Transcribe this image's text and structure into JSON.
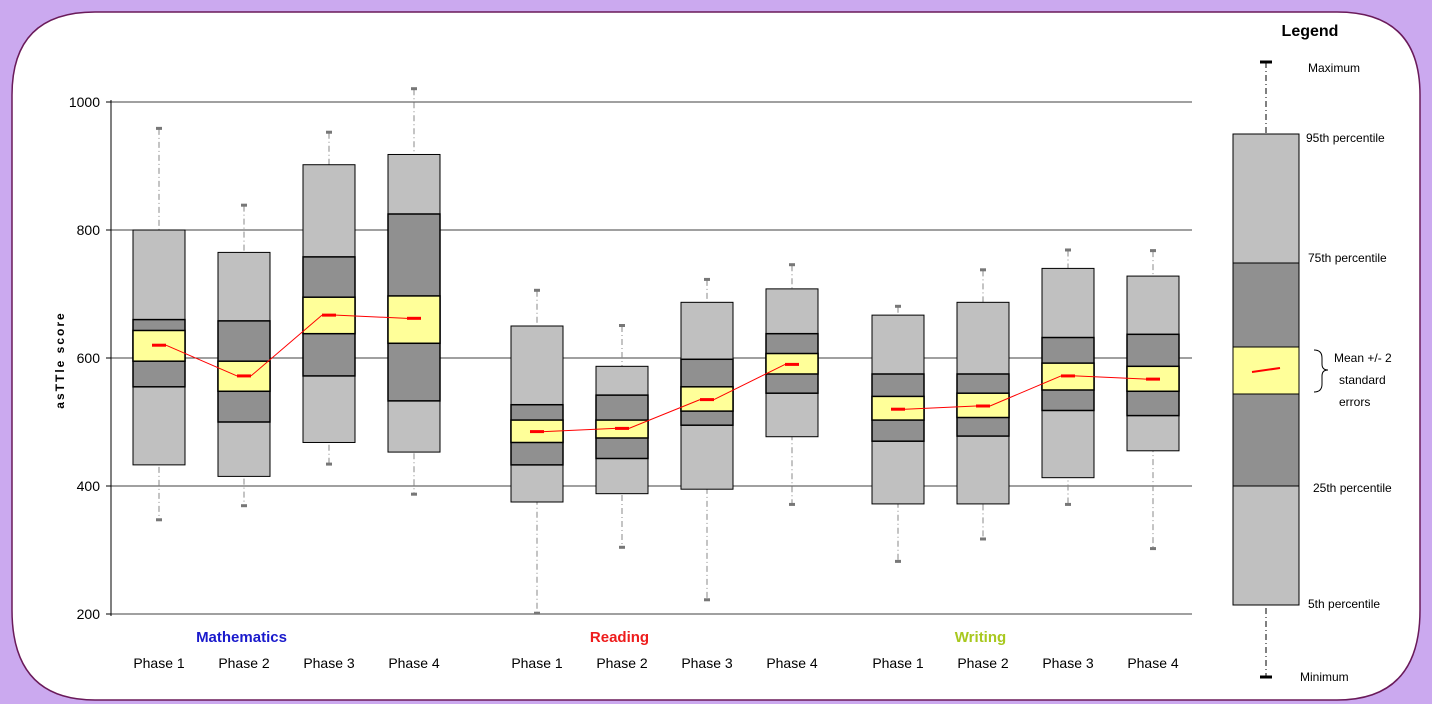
{
  "chart_data": {
    "type": "boxplot",
    "title": "",
    "ylabel": "asTTle score",
    "ylim": [
      200,
      1000
    ],
    "yticks": [
      200,
      400,
      600,
      800,
      1000
    ],
    "grid": true,
    "legend_position": "right",
    "colors": {
      "outer_box": "#c0c0c0",
      "inner_box": "#909090",
      "mean_band": "#ffff99",
      "mean_marker": "#ff0000",
      "mathematics_label": "#1a1acc",
      "reading_label": "#ee1c1c",
      "writing_label": "#a8c81e"
    },
    "groups": [
      {
        "name": "Mathematics",
        "label_color": "#1a1acc",
        "phases": [
          {
            "label": "Phase 1",
            "min": 348,
            "p5": 433,
            "p25": 555,
            "se_low": 595,
            "mean": 620,
            "se_high": 643,
            "p75": 660,
            "p95": 800,
            "max": 958
          },
          {
            "label": "Phase 2",
            "min": 370,
            "p5": 415,
            "p25": 500,
            "se_low": 548,
            "mean": 572,
            "se_high": 595,
            "p75": 658,
            "p95": 765,
            "max": 838
          },
          {
            "label": "Phase 3",
            "min": 435,
            "p5": 468,
            "p25": 572,
            "se_low": 638,
            "mean": 667,
            "se_high": 695,
            "p75": 758,
            "p95": 902,
            "max": 952
          },
          {
            "label": "Phase 4",
            "min": 388,
            "p5": 453,
            "p25": 533,
            "se_low": 623,
            "mean": 662,
            "se_high": 697,
            "p75": 825,
            "p95": 918,
            "max": 1020
          }
        ]
      },
      {
        "name": "Reading",
        "label_color": "#ee1c1c",
        "phases": [
          {
            "label": "Phase 1",
            "min": 202,
            "p5": 375,
            "p25": 433,
            "se_low": 468,
            "mean": 485,
            "se_high": 503,
            "p75": 527,
            "p95": 650,
            "max": 705
          },
          {
            "label": "Phase 2",
            "min": 305,
            "p5": 388,
            "p25": 443,
            "se_low": 475,
            "mean": 490,
            "se_high": 503,
            "p75": 542,
            "p95": 587,
            "max": 650
          },
          {
            "label": "Phase 3",
            "min": 223,
            "p5": 395,
            "p25": 495,
            "se_low": 517,
            "mean": 535,
            "se_high": 555,
            "p75": 598,
            "p95": 687,
            "max": 722
          },
          {
            "label": "Phase 4",
            "min": 372,
            "p5": 477,
            "p25": 545,
            "se_low": 575,
            "mean": 590,
            "se_high": 607,
            "p75": 638,
            "p95": 708,
            "max": 745
          }
        ]
      },
      {
        "name": "Writing",
        "label_color": "#a8c81e",
        "phases": [
          {
            "label": "Phase 1",
            "min": 283,
            "p5": 372,
            "p25": 470,
            "se_low": 503,
            "mean": 520,
            "se_high": 540,
            "p75": 575,
            "p95": 667,
            "max": 680
          },
          {
            "label": "Phase 2",
            "min": 318,
            "p5": 372,
            "p25": 478,
            "se_low": 507,
            "mean": 525,
            "se_high": 545,
            "p75": 575,
            "p95": 687,
            "max": 737
          },
          {
            "label": "Phase 3",
            "min": 372,
            "p5": 413,
            "p25": 518,
            "se_low": 550,
            "mean": 572,
            "se_high": 592,
            "p75": 632,
            "p95": 740,
            "max": 768
          },
          {
            "label": "Phase 4",
            "min": 303,
            "p5": 455,
            "p25": 510,
            "se_low": 548,
            "mean": 567,
            "se_high": 587,
            "p75": 637,
            "p95": 728,
            "max": 767
          }
        ]
      }
    ],
    "legend": {
      "title": "Legend",
      "labels": {
        "max": "Maximum",
        "p95": "95th percentile",
        "p75": "75th percentile",
        "mean": "Mean +/- 2 standard errors",
        "mean_lines": [
          "Mean +/- 2",
          "standard",
          "errors"
        ],
        "p25": "25th percentile",
        "p5": "5th percentile",
        "min": "Minimum"
      }
    }
  }
}
